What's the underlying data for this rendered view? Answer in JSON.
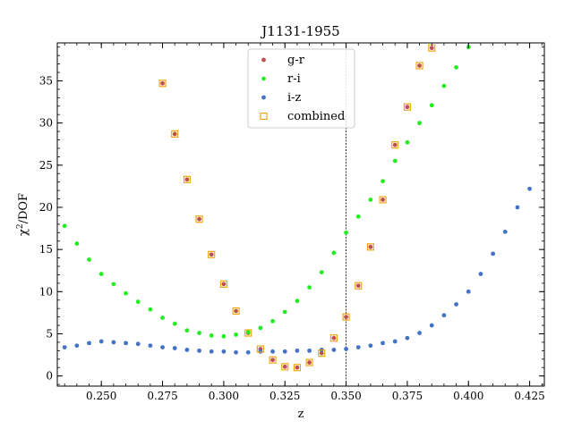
{
  "chart_data": {
    "type": "scatter",
    "title": "J1131-1955",
    "xlabel": "z",
    "ylabel_main": "χ",
    "ylabel_sup": "2",
    "ylabel_rest": "/DOF",
    "xlim": [
      0.232,
      0.431
    ],
    "ylim": [
      -1.2,
      39.5
    ],
    "xticks": [
      0.25,
      0.275,
      0.3,
      0.325,
      0.35,
      0.375,
      0.4,
      0.425
    ],
    "xtick_labels": [
      "0.250",
      "0.275",
      "0.300",
      "0.325",
      "0.350",
      "0.375",
      "0.400",
      "0.425"
    ],
    "yticks": [
      0,
      5,
      10,
      15,
      20,
      25,
      30,
      35
    ],
    "ytick_labels": [
      "0",
      "5",
      "10",
      "15",
      "20",
      "25",
      "30",
      "35"
    ],
    "vline_x": 0.35,
    "legend_position": "top-center",
    "grid": false,
    "series": [
      {
        "name": "g-r",
        "color": "#c0504d",
        "marker": "dot",
        "points": [
          [
            0.275,
            34.7
          ],
          [
            0.28,
            28.7
          ],
          [
            0.285,
            23.3
          ],
          [
            0.29,
            18.6
          ],
          [
            0.295,
            14.4
          ],
          [
            0.3,
            10.9
          ],
          [
            0.305,
            7.7
          ],
          [
            0.31,
            5.1
          ],
          [
            0.315,
            3.2
          ],
          [
            0.32,
            1.9
          ],
          [
            0.325,
            1.1
          ],
          [
            0.33,
            1.0
          ],
          [
            0.335,
            1.6
          ],
          [
            0.34,
            2.7
          ],
          [
            0.345,
            4.5
          ],
          [
            0.35,
            7.0
          ],
          [
            0.355,
            10.7
          ],
          [
            0.36,
            15.3
          ],
          [
            0.365,
            20.9
          ],
          [
            0.37,
            27.4
          ],
          [
            0.375,
            31.9
          ],
          [
            0.38,
            36.8
          ],
          [
            0.385,
            38.9
          ]
        ]
      },
      {
        "name": "r-i",
        "color": "#22ee22",
        "marker": "dot",
        "points": [
          [
            0.235,
            17.8
          ],
          [
            0.24,
            15.7
          ],
          [
            0.245,
            13.8
          ],
          [
            0.25,
            12.1
          ],
          [
            0.255,
            10.9
          ],
          [
            0.26,
            9.8
          ],
          [
            0.265,
            8.8
          ],
          [
            0.27,
            7.9
          ],
          [
            0.275,
            6.9
          ],
          [
            0.28,
            6.2
          ],
          [
            0.285,
            5.4
          ],
          [
            0.29,
            5.1
          ],
          [
            0.295,
            4.8
          ],
          [
            0.3,
            4.7
          ],
          [
            0.305,
            4.9
          ],
          [
            0.31,
            5.2
          ],
          [
            0.315,
            5.7
          ],
          [
            0.32,
            6.5
          ],
          [
            0.325,
            7.6
          ],
          [
            0.33,
            8.9
          ],
          [
            0.335,
            10.5
          ],
          [
            0.34,
            12.3
          ],
          [
            0.345,
            14.6
          ],
          [
            0.35,
            17.0
          ],
          [
            0.355,
            18.9
          ],
          [
            0.36,
            20.9
          ],
          [
            0.365,
            23.1
          ],
          [
            0.37,
            25.5
          ],
          [
            0.375,
            27.7
          ],
          [
            0.38,
            30.0
          ],
          [
            0.385,
            32.1
          ],
          [
            0.39,
            34.4
          ],
          [
            0.395,
            36.6
          ],
          [
            0.4,
            39.0
          ]
        ]
      },
      {
        "name": "i-z",
        "color": "#4472c4",
        "marker": "dot",
        "points": [
          [
            0.235,
            3.4
          ],
          [
            0.24,
            3.6
          ],
          [
            0.245,
            3.9
          ],
          [
            0.25,
            4.1
          ],
          [
            0.255,
            4.0
          ],
          [
            0.26,
            3.9
          ],
          [
            0.265,
            3.8
          ],
          [
            0.27,
            3.6
          ],
          [
            0.275,
            3.4
          ],
          [
            0.28,
            3.3
          ],
          [
            0.285,
            3.1
          ],
          [
            0.29,
            3.0
          ],
          [
            0.295,
            2.9
          ],
          [
            0.3,
            2.9
          ],
          [
            0.305,
            2.8
          ],
          [
            0.31,
            2.8
          ],
          [
            0.315,
            2.9
          ],
          [
            0.32,
            2.9
          ],
          [
            0.325,
            2.9
          ],
          [
            0.33,
            3.0
          ],
          [
            0.335,
            3.0
          ],
          [
            0.34,
            3.1
          ],
          [
            0.345,
            3.1
          ],
          [
            0.35,
            3.2
          ],
          [
            0.355,
            3.4
          ],
          [
            0.36,
            3.6
          ],
          [
            0.365,
            3.9
          ],
          [
            0.37,
            4.1
          ],
          [
            0.375,
            4.5
          ],
          [
            0.38,
            5.1
          ],
          [
            0.385,
            6.0
          ],
          [
            0.39,
            7.2
          ],
          [
            0.395,
            8.5
          ],
          [
            0.4,
            10.0
          ],
          [
            0.405,
            12.1
          ],
          [
            0.41,
            14.5
          ],
          [
            0.415,
            17.1
          ],
          [
            0.42,
            20.0
          ],
          [
            0.425,
            22.2
          ]
        ]
      },
      {
        "name": "combined",
        "color": "#f0a000",
        "marker": "square",
        "points": [
          [
            0.275,
            34.7
          ],
          [
            0.28,
            28.7
          ],
          [
            0.285,
            23.3
          ],
          [
            0.29,
            18.6
          ],
          [
            0.295,
            14.4
          ],
          [
            0.3,
            10.9
          ],
          [
            0.305,
            7.7
          ],
          [
            0.31,
            5.1
          ],
          [
            0.315,
            3.2
          ],
          [
            0.32,
            1.9
          ],
          [
            0.325,
            1.1
          ],
          [
            0.33,
            1.0
          ],
          [
            0.335,
            1.6
          ],
          [
            0.34,
            2.7
          ],
          [
            0.345,
            4.5
          ],
          [
            0.35,
            7.0
          ],
          [
            0.355,
            10.7
          ],
          [
            0.36,
            15.3
          ],
          [
            0.365,
            20.9
          ],
          [
            0.37,
            27.4
          ],
          [
            0.375,
            31.9
          ],
          [
            0.38,
            36.8
          ],
          [
            0.385,
            38.9
          ]
        ]
      }
    ]
  }
}
